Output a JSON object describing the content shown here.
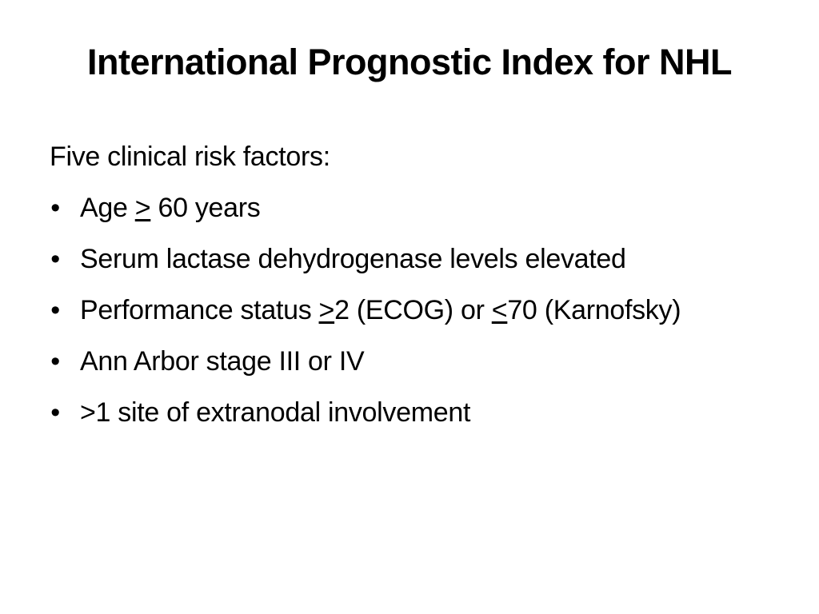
{
  "slide": {
    "title": "International Prognostic Index for NHL",
    "intro": "Five clinical risk factors:",
    "bullet_glyph": "•",
    "items": [
      {
        "parts": [
          {
            "text": "Age ",
            "underline": false
          },
          {
            "text": ">",
            "underline": true
          },
          {
            "text": " 60 years",
            "underline": false
          }
        ]
      },
      {
        "parts": [
          {
            "text": "Serum lactase dehydrogenase levels elevated",
            "underline": false
          }
        ]
      },
      {
        "parts": [
          {
            "text": "Performance status ",
            "underline": false
          },
          {
            "text": ">",
            "underline": true
          },
          {
            "text": "2 (ECOG) or ",
            "underline": false
          },
          {
            "text": "<",
            "underline": true
          },
          {
            "text": "70 (Karnofsky)",
            "underline": false
          }
        ]
      },
      {
        "parts": [
          {
            "text": "Ann Arbor stage III or IV",
            "underline": false
          }
        ]
      },
      {
        "parts": [
          {
            "text": ">1 site of extranodal involvement",
            "underline": false
          }
        ]
      }
    ]
  }
}
